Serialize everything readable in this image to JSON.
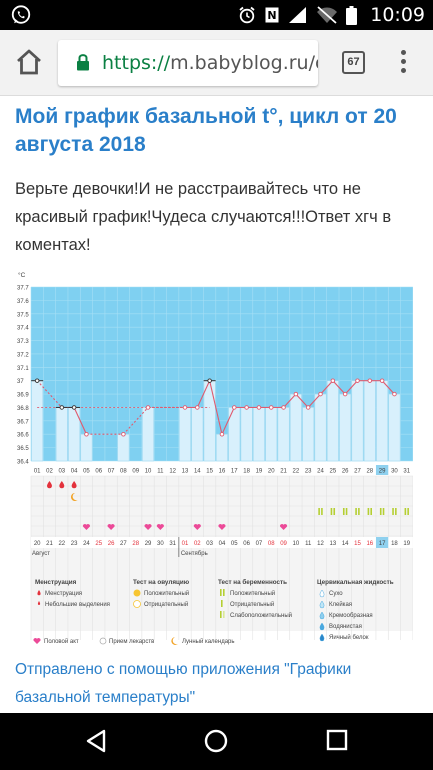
{
  "status_bar": {
    "time": "10:09",
    "icons": [
      "whatsapp-icon",
      "alarm-icon",
      "signal-icon",
      "wifi-off-icon",
      "battery-icon"
    ],
    "network_label": "N"
  },
  "browser": {
    "url_scheme": "https://",
    "url_rest": "m.babyblog.ru/cc",
    "tab_count": "67"
  },
  "page": {
    "title": "Мой график базальной t°, цикл от 20 августа 2018",
    "body": "Верьте девочки!И не расстраивайтесь что не красивый график!Чудеса случаются!!!Ответ хгч в коментах!",
    "footer_link": "Отправлено с помощью приложения \"Графики базальной температуры\""
  },
  "chart_data": {
    "type": "bar",
    "ylabel": "°C",
    "ylim": [
      36.4,
      37.7
    ],
    "yticks": [
      "37.7",
      "37.6",
      "37.5",
      "37.4",
      "37.3",
      "37.2",
      "37.1",
      "37",
      "36.9",
      "36.8",
      "36.7",
      "36.6",
      "36.5",
      "36.4"
    ],
    "cycle_days": [
      "01",
      "02",
      "03",
      "04",
      "05",
      "06",
      "07",
      "08",
      "09",
      "10",
      "11",
      "12",
      "13",
      "14",
      "15",
      "16",
      "17",
      "18",
      "19",
      "20",
      "21",
      "22",
      "23",
      "24",
      "25",
      "26",
      "27",
      "28",
      "29",
      "30",
      "31"
    ],
    "dates": [
      "20",
      "21",
      "22",
      "23",
      "24",
      "25",
      "26",
      "27",
      "28",
      "29",
      "30",
      "31",
      "01",
      "02",
      "03",
      "04",
      "05",
      "06",
      "07",
      "08",
      "09",
      "10",
      "11",
      "12",
      "13",
      "14",
      "15",
      "16",
      "17",
      "18",
      "19"
    ],
    "red_dates": [
      5,
      6,
      8,
      12,
      13,
      19,
      20,
      26,
      27
    ],
    "highlight_day": 29,
    "month_start": "Август",
    "month_mid": "Сентябрь",
    "temps": [
      37.0,
      null,
      36.8,
      36.8,
      36.6,
      null,
      null,
      36.6,
      null,
      36.8,
      null,
      null,
      36.8,
      36.8,
      37.0,
      36.6,
      36.8,
      36.8,
      36.8,
      36.8,
      36.8,
      36.9,
      36.8,
      36.9,
      37.0,
      36.9,
      37.0,
      37.0,
      37.0,
      36.9,
      null
    ],
    "coverline": 36.8,
    "menstruation_days": [
      2,
      3,
      4
    ],
    "moon_day": 4,
    "intercourse_days": [
      5,
      7,
      10,
      11,
      14,
      16,
      21
    ],
    "pregnancy_test_days": [
      24,
      25,
      26,
      27,
      28,
      29,
      30,
      31
    ],
    "legend": {
      "menstruation_title": "Менструация",
      "menstruation_items": [
        "Менструация",
        "Небольшие выделения"
      ],
      "ovulation_title": "Тест на овуляцию",
      "ovulation_items": [
        "Положительный",
        "Отрицательный"
      ],
      "pregnancy_title": "Тест на беременность",
      "pregnancy_items": [
        "Положительный",
        "Отрицательный",
        "Слабоположительный"
      ],
      "fluid_title": "Цервикальная жидкость",
      "fluid_items": [
        "Сухо",
        "Клейкая",
        "Кремообразная",
        "Водянистая",
        "Яичный белок"
      ],
      "bottom_items": [
        "Половой акт",
        "Прием лекарств",
        "Лунный календарь"
      ]
    },
    "colors": {
      "bg_blue": "#7fd0f1",
      "bar_fill": "#d8f0fc",
      "line": "#e05a6e",
      "grid_dark": "#5ebde6",
      "heart": "#ec4a98",
      "drop": "#e3323c",
      "test_green": "#b5cf32",
      "moon": "#f2a428",
      "highlight": "#8fd1ef"
    }
  }
}
